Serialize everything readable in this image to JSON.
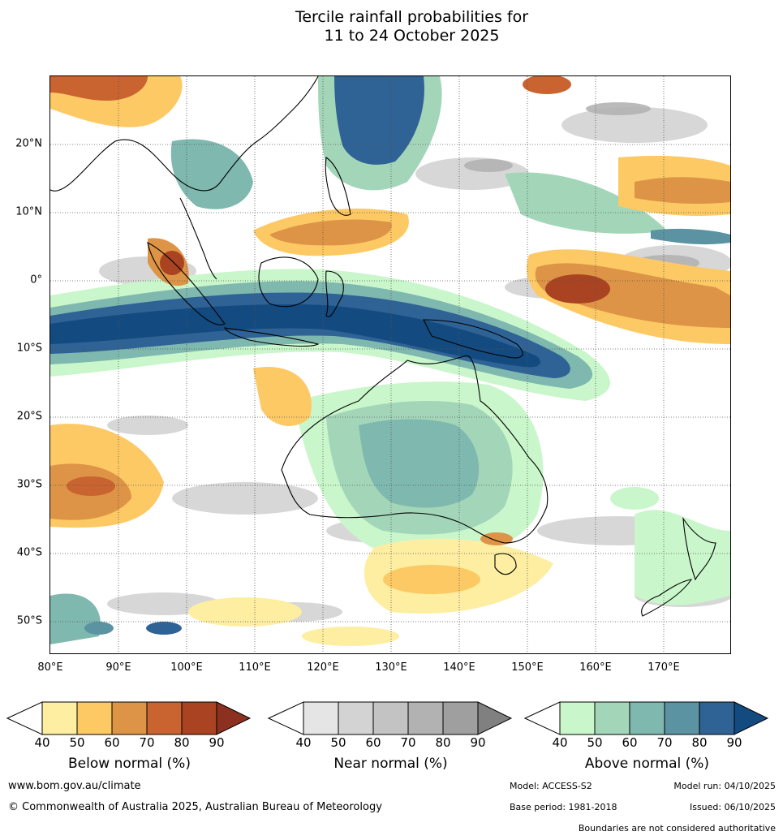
{
  "title_line1": "Tercile rainfall probabilities for",
  "title_line2": "11 to 24 October 2025",
  "map": {
    "lat_labels": [
      "20°N",
      "10°N",
      "0°",
      "10°S",
      "20°S",
      "30°S",
      "40°S",
      "50°S"
    ],
    "lon_labels": [
      "80°E",
      "90°E",
      "100°E",
      "110°E",
      "120°E",
      "130°E",
      "140°E",
      "150°E",
      "160°E",
      "170°E"
    ],
    "lon_range": [
      80,
      180
    ],
    "lat_range": [
      -55,
      30
    ]
  },
  "colorbars": [
    {
      "title": "Below normal (%)",
      "ticks": [
        "40",
        "50",
        "60",
        "70",
        "80",
        "90"
      ],
      "colors": [
        "#ffffff",
        "#fdeea2",
        "#fcc964",
        "#de9446",
        "#c9632f",
        "#a94322",
        "#8c3120"
      ]
    },
    {
      "title": "Near normal (%)",
      "ticks": [
        "40",
        "50",
        "60",
        "70",
        "80",
        "90"
      ],
      "colors": [
        "#ffffff",
        "#e5e5e5",
        "#d3d3d3",
        "#c3c3c3",
        "#b2b2b2",
        "#9f9f9f",
        "#808080"
      ]
    },
    {
      "title": "Above normal (%)",
      "ticks": [
        "40",
        "50",
        "60",
        "70",
        "80",
        "90"
      ],
      "colors": [
        "#ffffff",
        "#c9f6cb",
        "#a3d6b9",
        "#7eb8af",
        "#5b93a3",
        "#2f6295",
        "#134b80"
      ]
    }
  ],
  "footer": {
    "website": "www.bom.gov.au/climate",
    "copyright": "© Commonwealth of Australia 2025, Australian Bureau of Meteorology",
    "model": "Model: ACCESS-S2",
    "model_run": "Model run: 04/10/2025",
    "base_period": "Base period: 1981-2018",
    "issued": "Issued: 06/10/2025",
    "disclaimer": "Boundaries are not considered authoritative"
  }
}
